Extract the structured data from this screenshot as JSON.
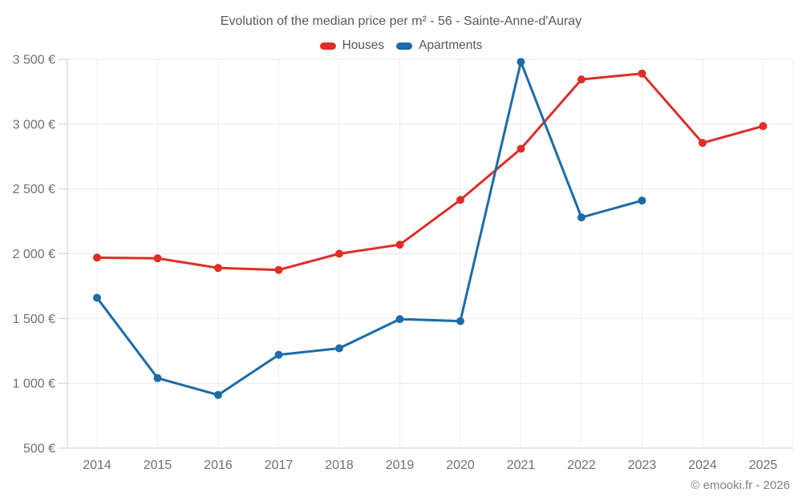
{
  "title": "Evolution of the median price per m² - 56 - Sainte-Anne-d'Auray",
  "footer": "© emooki.fr - 2026",
  "chart_data": {
    "type": "line",
    "categories": [
      "2014",
      "2015",
      "2016",
      "2017",
      "2018",
      "2019",
      "2020",
      "2021",
      "2022",
      "2023",
      "2024",
      "2025"
    ],
    "series": [
      {
        "name": "Houses",
        "color": "#db2f27",
        "values": [
          1970,
          1965,
          1890,
          1875,
          2000,
          2070,
          2415,
          2810,
          3345,
          3390,
          2855,
          2985
        ]
      },
      {
        "name": "Apartments",
        "color": "#1b6ca8",
        "values": [
          1660,
          1040,
          910,
          1220,
          1270,
          1495,
          1480,
          3480,
          2280,
          2410,
          null,
          null
        ]
      }
    ],
    "yticks": [
      {
        "value": 500,
        "label": "500 €"
      },
      {
        "value": 1000,
        "label": "1 000 €"
      },
      {
        "value": 1500,
        "label": "1 500 €"
      },
      {
        "value": 2000,
        "label": "2 000 €"
      },
      {
        "value": 2500,
        "label": "2 500 €"
      },
      {
        "value": 3000,
        "label": "3 000 €"
      },
      {
        "value": 3500,
        "label": "3 500 €"
      }
    ],
    "ylim": [
      500,
      3500
    ],
    "unit": "€",
    "grid": true,
    "legend_position": "top"
  }
}
